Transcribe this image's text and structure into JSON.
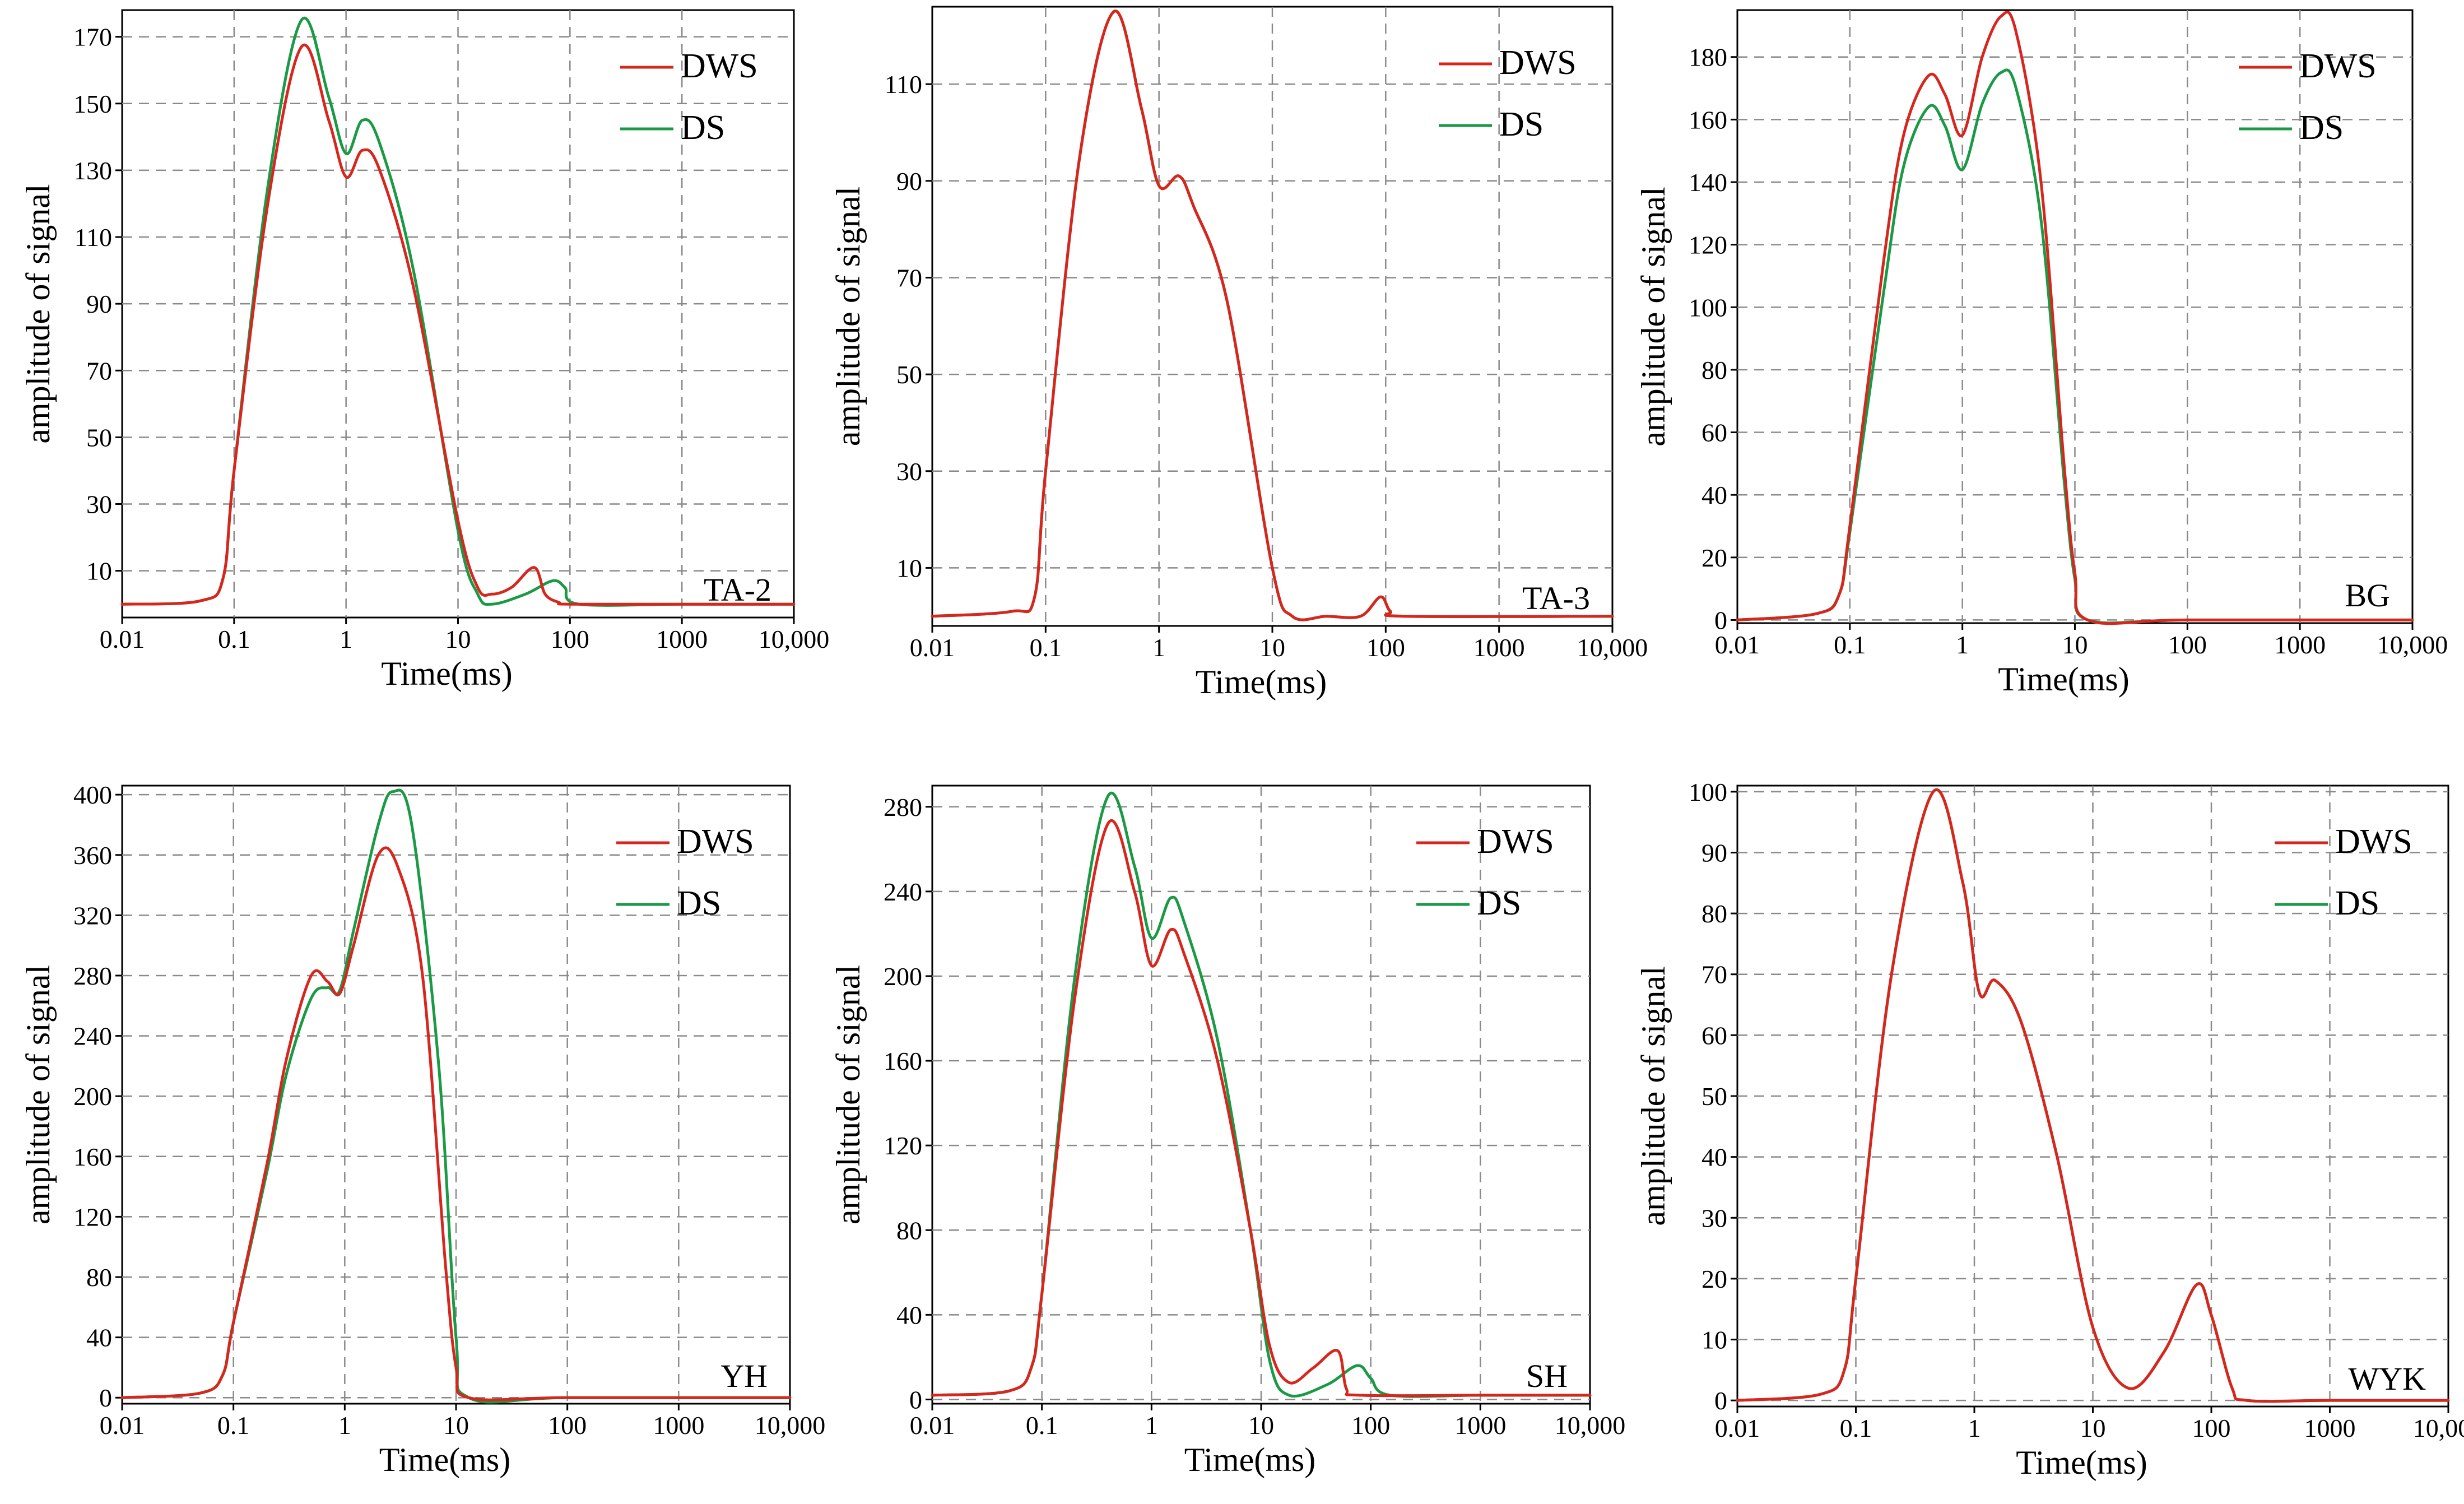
{
  "chart_data": [
    {
      "type": "line",
      "panel_label": "TA-2",
      "xlabel": "Time(ms)",
      "ylabel": "amplitude of signal",
      "xscale": "log",
      "xlim": [
        0.01,
        10000
      ],
      "x_ticks": [
        "0.01",
        "0.1",
        "1",
        "10",
        "100",
        "1000",
        "10,000"
      ],
      "ylim": [
        -4,
        178
      ],
      "y_ticks": [
        10,
        30,
        50,
        70,
        90,
        110,
        130,
        150,
        170
      ],
      "grid": true,
      "legend": "top-right",
      "series": [
        {
          "name": "DWS",
          "color": "#d7261e",
          "x": [
            0.01,
            0.05,
            0.08,
            0.1,
            0.2,
            0.4,
            0.7,
            1,
            1.4,
            2,
            4,
            10,
            15,
            20,
            30,
            48,
            60,
            80,
            100,
            1000,
            10000
          ],
          "y": [
            0,
            1,
            8,
            40,
            120,
            167,
            145,
            128,
            136,
            130,
            95,
            25,
            5,
            3,
            5,
            11,
            3,
            0.5,
            0,
            0,
            0
          ]
        },
        {
          "name": "DS",
          "color": "#1a9a45",
          "x": [
            0.01,
            0.05,
            0.08,
            0.1,
            0.2,
            0.4,
            0.7,
            1,
            1.4,
            2,
            4,
            10,
            15,
            20,
            40,
            70,
            90,
            120,
            1000,
            10000
          ],
          "y": [
            0,
            1,
            8,
            40,
            125,
            175,
            152,
            135,
            145,
            138,
            100,
            22,
            3,
            0,
            3,
            7,
            5,
            0,
            0,
            0
          ]
        }
      ]
    },
    {
      "type": "line",
      "panel_label": "TA-3",
      "xlabel": "Time(ms)",
      "ylabel": "amplitude of signal",
      "xscale": "log",
      "xlim": [
        0.01,
        10000
      ],
      "x_ticks": [
        "0.01",
        "0.1",
        "1",
        "10",
        "100",
        "1000",
        "10,000"
      ],
      "ylim": [
        -2,
        126
      ],
      "y_ticks": [
        10,
        30,
        50,
        70,
        90,
        110
      ],
      "grid": true,
      "legend": "top-right",
      "series": [
        {
          "name": "DWS",
          "color": "#d7261e",
          "x": [
            0.01,
            0.05,
            0.08,
            0.1,
            0.2,
            0.4,
            0.7,
            1,
            1.5,
            2,
            4,
            10,
            15,
            30,
            60,
            90,
            110,
            150,
            10000
          ],
          "y": [
            0,
            1,
            4,
            30,
            95,
            125,
            105,
            89,
            91,
            85,
            65,
            10,
            0,
            0,
            0,
            4,
            1,
            0,
            0
          ]
        },
        {
          "name": "DS",
          "color": "#1a9a45",
          "x": [
            0.01,
            0.05,
            0.08,
            0.1,
            0.2,
            0.4,
            0.7,
            1,
            1.5,
            2,
            4,
            10,
            15,
            30,
            60,
            90,
            110,
            150,
            10000
          ],
          "y": [
            0,
            1,
            4,
            30,
            95,
            125,
            105,
            89,
            91,
            85,
            65,
            10,
            0,
            0,
            0,
            4,
            1,
            0,
            0
          ]
        }
      ]
    },
    {
      "type": "line",
      "panel_label": "BG",
      "xlabel": "Time(ms)",
      "ylabel": "amplitude of signal",
      "xscale": "log",
      "xlim": [
        0.01,
        10000
      ],
      "x_ticks": [
        "0.01",
        "0.1",
        "1",
        "10",
        "100",
        "1000",
        "10,000"
      ],
      "ylim": [
        -1,
        195
      ],
      "y_ticks": [
        0,
        20,
        40,
        60,
        80,
        100,
        120,
        140,
        160,
        180
      ],
      "grid": true,
      "legend": "top-right",
      "series": [
        {
          "name": "DWS",
          "color": "#d7261e",
          "x": [
            0.01,
            0.05,
            0.08,
            0.1,
            0.2,
            0.3,
            0.5,
            0.7,
            1,
            1.5,
            2.2,
            3,
            5,
            8,
            10,
            13,
            100,
            10000
          ],
          "y": [
            0,
            2,
            8,
            30,
            115,
            155,
            174,
            168,
            155,
            180,
            193,
            188,
            140,
            50,
            15,
            0,
            0,
            0
          ]
        },
        {
          "name": "DS",
          "color": "#1a9a45",
          "x": [
            0.01,
            0.05,
            0.08,
            0.1,
            0.2,
            0.3,
            0.5,
            0.7,
            1,
            1.5,
            2.2,
            3,
            5,
            8,
            10,
            13,
            100,
            10000
          ],
          "y": [
            0,
            2,
            8,
            28,
            105,
            145,
            164,
            158,
            144,
            165,
            175,
            170,
            128,
            45,
            13,
            0,
            0,
            0
          ]
        }
      ]
    },
    {
      "type": "line",
      "panel_label": "YH",
      "xlabel": "Time(ms)",
      "ylabel": "amplitude of signal",
      "xscale": "log",
      "xlim": [
        0.01,
        10000
      ],
      "x_ticks": [
        "0.01",
        "0.1",
        "1",
        "10",
        "100",
        "1000",
        "10,000"
      ],
      "ylim": [
        -4,
        406
      ],
      "y_ticks": [
        0,
        40,
        80,
        120,
        160,
        200,
        240,
        280,
        320,
        360,
        400
      ],
      "grid": true,
      "legend": "top-right",
      "series": [
        {
          "name": "DWS",
          "color": "#d7261e",
          "x": [
            0.01,
            0.05,
            0.08,
            0.1,
            0.2,
            0.3,
            0.5,
            0.7,
            0.9,
            1.2,
            2,
            3,
            5,
            8,
            10,
            13,
            100,
            10000
          ],
          "y": [
            0,
            3,
            15,
            50,
            155,
            225,
            280,
            276,
            268,
            300,
            360,
            352,
            280,
            90,
            20,
            0,
            0,
            0
          ]
        },
        {
          "name": "DS",
          "color": "#1a9a45",
          "x": [
            0.01,
            0.05,
            0.08,
            0.1,
            0.2,
            0.3,
            0.5,
            0.7,
            0.9,
            1.2,
            2,
            2.7,
            4,
            7,
            10,
            13,
            100,
            10000
          ],
          "y": [
            0,
            3,
            15,
            50,
            150,
            215,
            265,
            272,
            270,
            310,
            380,
            402,
            380,
            220,
            40,
            0,
            0,
            0
          ]
        }
      ]
    },
    {
      "type": "line",
      "panel_label": "SH",
      "xlabel": "Time(ms)",
      "ylabel": "amplitude of signal",
      "xscale": "log",
      "xlim": [
        0.01,
        10000
      ],
      "x_ticks": [
        "0.01",
        "0.1",
        "1",
        "10",
        "100",
        "1000",
        "10,000"
      ],
      "ylim": [
        -2,
        290
      ],
      "y_ticks": [
        0,
        40,
        80,
        120,
        160,
        200,
        240,
        280
      ],
      "grid": true,
      "legend": "top-right",
      "series": [
        {
          "name": "DWS",
          "color": "#d7261e",
          "x": [
            0.01,
            0.05,
            0.08,
            0.1,
            0.2,
            0.4,
            0.7,
            1,
            1.5,
            2,
            4,
            8,
            12,
            18,
            30,
            50,
            60,
            80,
            1000,
            10000
          ],
          "y": [
            2,
            4,
            15,
            50,
            190,
            272,
            240,
            205,
            222,
            210,
            160,
            80,
            25,
            8,
            15,
            23,
            5,
            2,
            2,
            2
          ]
        },
        {
          "name": "DS",
          "color": "#1a9a45",
          "x": [
            0.01,
            0.05,
            0.08,
            0.1,
            0.2,
            0.4,
            0.7,
            1,
            1.5,
            2,
            4,
            8,
            12,
            18,
            40,
            75,
            100,
            150,
            1000,
            10000
          ],
          "y": [
            2,
            4,
            15,
            50,
            200,
            285,
            252,
            218,
            237,
            225,
            170,
            80,
            18,
            2,
            7,
            16,
            10,
            2,
            2,
            2
          ]
        }
      ]
    },
    {
      "type": "line",
      "panel_label": "WYK",
      "xlabel": "Time(ms)",
      "ylabel": "amplitude of signal",
      "xscale": "log",
      "xlim": [
        0.01,
        10000
      ],
      "x_ticks": [
        "0.01",
        "0.1",
        "1",
        "10",
        "100",
        "1000",
        "10,000"
      ],
      "ylim": [
        -1,
        101
      ],
      "y_ticks": [
        0,
        10,
        20,
        30,
        40,
        50,
        60,
        70,
        80,
        90,
        100
      ],
      "grid": true,
      "legend": "top-right",
      "series": [
        {
          "name": "DWS",
          "color": "#d7261e",
          "x": [
            0.01,
            0.05,
            0.08,
            0.1,
            0.2,
            0.45,
            0.8,
            1.1,
            1.5,
            2.5,
            5,
            10,
            20,
            40,
            75,
            100,
            150,
            200,
            1000,
            10000
          ],
          "y": [
            0,
            1,
            5,
            20,
            70,
            100,
            85,
            67,
            69,
            62,
            40,
            12,
            2,
            8,
            19,
            14,
            2,
            0,
            0,
            0
          ]
        },
        {
          "name": "DS",
          "color": "#1a9a45",
          "x": [
            0.01,
            0.05,
            0.08,
            0.1,
            0.2,
            0.45,
            0.8,
            1.1,
            1.5,
            2.5,
            5,
            10,
            20,
            40,
            75,
            100,
            150,
            200,
            1000,
            10000
          ],
          "y": [
            0,
            1,
            5,
            20,
            70,
            100,
            85,
            67,
            69,
            62,
            40,
            12,
            2,
            8,
            19,
            14,
            2,
            0,
            0,
            0
          ]
        }
      ]
    }
  ]
}
